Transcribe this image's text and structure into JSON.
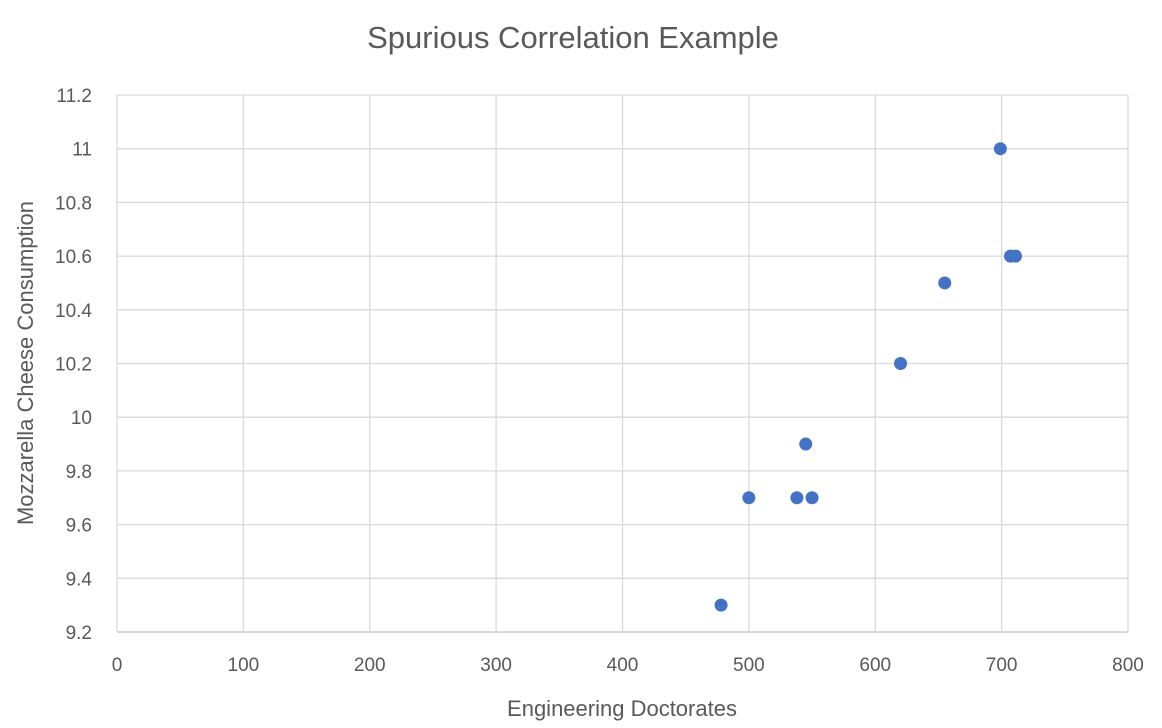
{
  "chart_data": {
    "type": "scatter",
    "title": "Spurious Correlation Example",
    "xlabel": "Engineering Doctorates",
    "ylabel": "Mozzarella Cheese Consumption",
    "xlim": [
      0,
      800
    ],
    "ylim": [
      9.2,
      11.2
    ],
    "xticks": [
      0,
      100,
      200,
      300,
      400,
      500,
      600,
      700,
      800
    ],
    "yticks": [
      9.2,
      9.4,
      9.6,
      9.8,
      10,
      10.2,
      10.4,
      10.6,
      10.8,
      11,
      11.2
    ],
    "grid": true,
    "marker_color": "#4472C4",
    "points": [
      {
        "x": 478,
        "y": 9.3
      },
      {
        "x": 500,
        "y": 9.7
      },
      {
        "x": 538,
        "y": 9.7
      },
      {
        "x": 550,
        "y": 9.7
      },
      {
        "x": 545,
        "y": 9.9
      },
      {
        "x": 620,
        "y": 10.2
      },
      {
        "x": 655,
        "y": 10.5
      },
      {
        "x": 707,
        "y": 10.6
      },
      {
        "x": 711,
        "y": 10.6
      },
      {
        "x": 699,
        "y": 11.0
      }
    ]
  }
}
